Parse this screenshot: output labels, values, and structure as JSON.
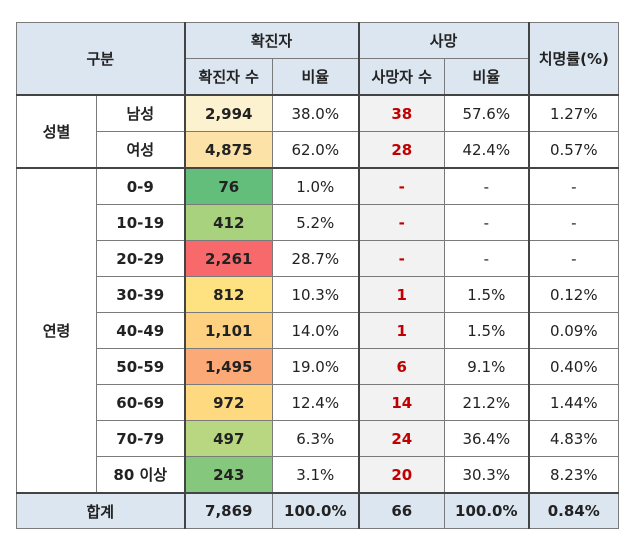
{
  "header": {
    "category": "구분",
    "confirmed": "확진자",
    "confirmed_count": "확진자 수",
    "confirmed_ratio": "비율",
    "death": "사망",
    "death_count": "사망자 수",
    "death_ratio": "비율",
    "fatality": "치명률(%)"
  },
  "gender": {
    "label": "성별",
    "rows": [
      {
        "label": "남성",
        "confirmed": "2,994",
        "ratio": "38.0%",
        "deaths": "38",
        "death_ratio": "57.6%",
        "fatality": "1.27%",
        "color": "#fdf2d0"
      },
      {
        "label": "여성",
        "confirmed": "4,875",
        "ratio": "62.0%",
        "deaths": "28",
        "death_ratio": "42.4%",
        "fatality": "0.57%",
        "color": "#fce2a6"
      }
    ]
  },
  "age": {
    "label": "연령",
    "rows": [
      {
        "label": "0-9",
        "confirmed": "76",
        "ratio": "1.0%",
        "deaths": "-",
        "death_ratio": "-",
        "fatality": "-",
        "color": "#63be7b"
      },
      {
        "label": "10-19",
        "confirmed": "412",
        "ratio": "5.2%",
        "deaths": "-",
        "death_ratio": "-",
        "fatality": "-",
        "color": "#a9d27f"
      },
      {
        "label": "20-29",
        "confirmed": "2,261",
        "ratio": "28.7%",
        "deaths": "-",
        "death_ratio": "-",
        "fatality": "-",
        "color": "#f8696b"
      },
      {
        "label": "30-39",
        "confirmed": "812",
        "ratio": "10.3%",
        "deaths": "1",
        "death_ratio": "1.5%",
        "fatality": "0.12%",
        "color": "#fee282"
      },
      {
        "label": "40-49",
        "confirmed": "1,101",
        "ratio": "14.0%",
        "deaths": "1",
        "death_ratio": "1.5%",
        "fatality": "0.09%",
        "color": "#fdd17f"
      },
      {
        "label": "50-59",
        "confirmed": "1,495",
        "ratio": "19.0%",
        "deaths": "6",
        "death_ratio": "9.1%",
        "fatality": "0.40%",
        "color": "#fbaa77"
      },
      {
        "label": "60-69",
        "confirmed": "972",
        "ratio": "12.4%",
        "deaths": "14",
        "death_ratio": "21.2%",
        "fatality": "1.44%",
        "color": "#fed980"
      },
      {
        "label": "70-79",
        "confirmed": "497",
        "ratio": "6.3%",
        "deaths": "24",
        "death_ratio": "36.4%",
        "fatality": "4.83%",
        "color": "#b9d780"
      },
      {
        "label": "80 이상",
        "confirmed": "243",
        "ratio": "3.1%",
        "deaths": "20",
        "death_ratio": "30.3%",
        "fatality": "8.23%",
        "color": "#85c77d"
      }
    ]
  },
  "total": {
    "label": "합계",
    "confirmed": "7,869",
    "ratio": "100.0%",
    "deaths": "66",
    "death_ratio": "100.0%",
    "fatality": "0.84%"
  }
}
